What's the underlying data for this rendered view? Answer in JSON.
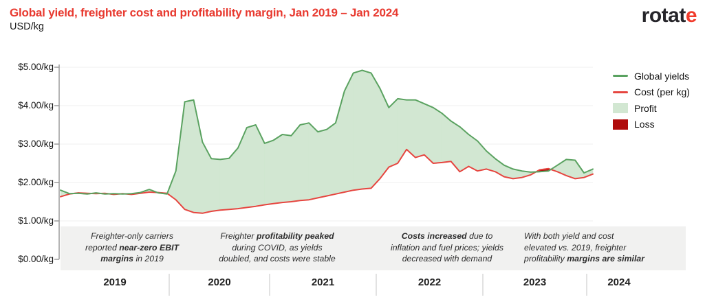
{
  "header": {
    "title": "Global yield, freighter cost and profitability margin, Jan 2019 – Jan 2024",
    "subtitle": "USD/kg",
    "logo": {
      "text": "rotat",
      "accent": "e"
    }
  },
  "colors": {
    "title_red": "#e8392f",
    "yield_line": "#5aa260",
    "cost_line": "#e6453f",
    "profit_fill": "#d2e7d2",
    "loss_fill": "#b00c0c",
    "logo_accent": "#f13b2b"
  },
  "legend": {
    "items": [
      {
        "label": "Global yields",
        "swatch": "line",
        "color": "#5aa260"
      },
      {
        "label": "Cost (per kg)",
        "swatch": "line",
        "color": "#e6453f"
      },
      {
        "label": "Profit",
        "swatch": "area",
        "color": "#d2e7d2"
      },
      {
        "label": "Loss",
        "swatch": "area",
        "color": "#b00c0c"
      }
    ]
  },
  "chart_data": {
    "type": "area",
    "title": "Global yield, freighter cost and profitability margin, Jan 2019 – Jan 2024",
    "unit": "USD/kg",
    "x_start": "2019-01",
    "x_end": "2024-01",
    "x_interval": "monthly",
    "ylim": [
      0,
      5
    ],
    "y_tick_labels": [
      "$0.00/kg",
      "$1.00/kg",
      "$2.00/kg",
      "$3.00/kg",
      "$4.00/kg",
      "$5.00/kg"
    ],
    "x_tick_labels": [
      "2019",
      "2020",
      "2021",
      "2022",
      "2023",
      "2024"
    ],
    "grid": "horizontal",
    "legend_position": "right",
    "fill_between": {
      "profit_color": "#d2e7d2",
      "loss_color": "#b00c0c",
      "rule": "profit where Global yields > Cost, loss where Cost > Global yields"
    },
    "series": [
      {
        "name": "Global yields",
        "color": "#5aa260",
        "values": [
          1.8,
          1.71,
          1.72,
          1.7,
          1.73,
          1.7,
          1.71,
          1.7,
          1.71,
          1.74,
          1.82,
          1.73,
          1.7,
          2.3,
          4.1,
          4.15,
          3.05,
          2.62,
          2.6,
          2.63,
          2.9,
          3.43,
          3.5,
          3.02,
          3.1,
          3.25,
          3.22,
          3.5,
          3.55,
          3.32,
          3.38,
          3.55,
          4.38,
          4.85,
          4.92,
          4.85,
          4.45,
          3.95,
          4.18,
          4.15,
          4.15,
          4.05,
          3.95,
          3.8,
          3.6,
          3.45,
          3.25,
          3.08,
          2.82,
          2.62,
          2.45,
          2.35,
          2.3,
          2.27,
          2.28,
          2.3,
          2.45,
          2.6,
          2.58,
          2.25,
          2.35
        ]
      },
      {
        "name": "Cost (per kg)",
        "color": "#e6453f",
        "values": [
          1.63,
          1.7,
          1.73,
          1.72,
          1.71,
          1.72,
          1.69,
          1.71,
          1.69,
          1.72,
          1.75,
          1.74,
          1.72,
          1.55,
          1.3,
          1.22,
          1.2,
          1.25,
          1.28,
          1.3,
          1.32,
          1.35,
          1.38,
          1.42,
          1.45,
          1.48,
          1.5,
          1.53,
          1.55,
          1.6,
          1.65,
          1.7,
          1.75,
          1.8,
          1.83,
          1.85,
          2.1,
          2.4,
          2.5,
          2.86,
          2.65,
          2.72,
          2.5,
          2.52,
          2.55,
          2.28,
          2.42,
          2.3,
          2.35,
          2.28,
          2.15,
          2.1,
          2.13,
          2.2,
          2.33,
          2.36,
          2.28,
          2.18,
          2.1,
          2.13,
          2.22
        ]
      }
    ],
    "annotations": [
      {
        "align": "center",
        "lines": [
          [
            {
              "t": "Freighter-only carriers"
            }
          ],
          [
            {
              "t": "reported "
            },
            {
              "t": "near-zero EBIT",
              "b": true
            }
          ],
          [
            {
              "t": "margins",
              "b": true
            },
            {
              "t": " in 2019"
            }
          ]
        ]
      },
      {
        "align": "center",
        "lines": [
          [
            {
              "t": "Freighter "
            },
            {
              "t": "profitability peaked",
              "b": true
            }
          ],
          [
            {
              "t": "during COVID, as yields"
            }
          ],
          [
            {
              "t": "doubled, and costs were stable"
            }
          ]
        ]
      },
      {
        "align": "center",
        "lines": [
          [
            {
              "t": "Costs increased",
              "b": true
            },
            {
              "t": " due to"
            }
          ],
          [
            {
              "t": "inflation and fuel prices; yields"
            }
          ],
          [
            {
              "t": "decreased with demand"
            }
          ]
        ]
      },
      {
        "align": "left",
        "lines": [
          [
            {
              "t": "With both yield and cost"
            }
          ],
          [
            {
              "t": "elevated vs. 2019, freighter"
            }
          ],
          [
            {
              "t": "profitability "
            },
            {
              "t": "margins are similar",
              "b": true
            }
          ]
        ]
      }
    ]
  }
}
